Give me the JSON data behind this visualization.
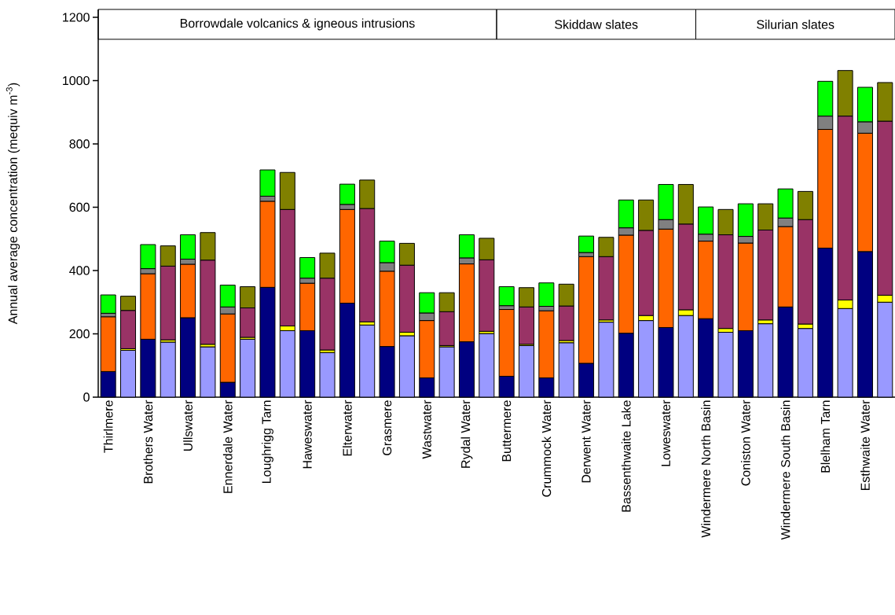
{
  "chart_data": {
    "type": "bar",
    "stacked": true,
    "ylabel": "Annual average concentration (mequiv m$^{-3}$)",
    "categories": [
      "Thirlmere",
      null,
      "Brothers Water",
      null,
      "Ullswater",
      null,
      "Ennerdale Water",
      null,
      "Loughrigg Tarn",
      null,
      "Haweswater",
      null,
      "Elterwater",
      null,
      "Grasmere",
      null,
      "Wastwater",
      null,
      "Rydal Water",
      null,
      "Buttermere",
      null,
      "Crummock Water",
      null,
      "Derwent Water",
      null,
      "Bassenthwaite Lake",
      null,
      "Loweswater",
      null,
      "Windermere North Basin",
      null,
      "Coniston Water",
      null,
      "Windermere South Basin",
      null,
      "Blelham Tarn",
      null,
      "Esthwaite Water",
      null
    ],
    "ylim": [
      0,
      1225
    ],
    "yticks": [
      0,
      200,
      400,
      600,
      800,
      1000,
      1200
    ],
    "series": [
      {
        "color": "#000080",
        "values": [
          81,
          null,
          183,
          null,
          251,
          null,
          47,
          null,
          347,
          null,
          210,
          null,
          297,
          null,
          160,
          null,
          61,
          null,
          175,
          null,
          66,
          null,
          61,
          null,
          107,
          null,
          202,
          null,
          220,
          null,
          248,
          null,
          210,
          null,
          285,
          null,
          471,
          null,
          460,
          null
        ]
      },
      {
        "color": "#ff6600",
        "values": [
          173,
          null,
          207,
          null,
          169,
          null,
          216,
          null,
          272,
          null,
          150,
          null,
          296,
          null,
          238,
          null,
          181,
          null,
          246,
          null,
          211,
          null,
          212,
          null,
          337,
          null,
          310,
          null,
          311,
          null,
          245,
          null,
          277,
          null,
          254,
          null,
          375,
          null,
          374,
          null
        ]
      },
      {
        "color": "#808080",
        "values": [
          11,
          null,
          16,
          null,
          16,
          null,
          22,
          null,
          16,
          null,
          16,
          null,
          16,
          null,
          27,
          null,
          24,
          null,
          19,
          null,
          12,
          null,
          14,
          null,
          13,
          null,
          23,
          null,
          30,
          null,
          22,
          null,
          21,
          null,
          27,
          null,
          42,
          null,
          36,
          null
        ]
      },
      {
        "color": "#00ff00",
        "values": [
          58,
          null,
          76,
          null,
          77,
          null,
          69,
          null,
          83,
          null,
          65,
          null,
          64,
          null,
          68,
          null,
          64,
          null,
          73,
          null,
          60,
          null,
          74,
          null,
          52,
          null,
          88,
          null,
          111,
          null,
          86,
          null,
          103,
          null,
          92,
          null,
          110,
          null,
          109,
          null
        ]
      },
      {
        "color": "#9999ff",
        "values": [
          null,
          148,
          null,
          174,
          null,
          159,
          null,
          183,
          null,
          210,
          null,
          141,
          null,
          228,
          null,
          194,
          null,
          159,
          null,
          201,
          null,
          163,
          null,
          172,
          null,
          237,
          null,
          242,
          null,
          258,
          null,
          205,
          null,
          232,
          null,
          217,
          null,
          280,
          null,
          300
        ]
      },
      {
        "color": "#ffff00",
        "values": [
          null,
          5,
          null,
          7,
          null,
          8,
          null,
          6,
          null,
          15,
          null,
          8,
          null,
          10,
          null,
          11,
          null,
          4,
          null,
          7,
          null,
          4,
          null,
          7,
          null,
          7,
          null,
          16,
          null,
          18,
          null,
          12,
          null,
          12,
          null,
          14,
          null,
          27,
          null,
          22
        ]
      },
      {
        "color": "#993366",
        "values": [
          null,
          121,
          null,
          233,
          null,
          266,
          null,
          93,
          null,
          368,
          null,
          227,
          null,
          358,
          null,
          212,
          null,
          107,
          null,
          226,
          null,
          118,
          null,
          109,
          null,
          200,
          null,
          269,
          null,
          271,
          null,
          296,
          null,
          284,
          null,
          330,
          null,
          581,
          null,
          550
        ]
      },
      {
        "color": "#808000",
        "values": [
          null,
          45,
          null,
          64,
          null,
          87,
          null,
          67,
          null,
          117,
          null,
          79,
          null,
          90,
          null,
          69,
          null,
          60,
          null,
          68,
          null,
          61,
          null,
          69,
          null,
          61,
          null,
          96,
          null,
          125,
          null,
          80,
          null,
          83,
          null,
          89,
          null,
          144,
          null,
          122
        ]
      }
    ],
    "annotations": [
      "Borrowdale volcanics & igneous intrusions",
      "Skiddaw slates",
      "Silurian slates"
    ]
  }
}
